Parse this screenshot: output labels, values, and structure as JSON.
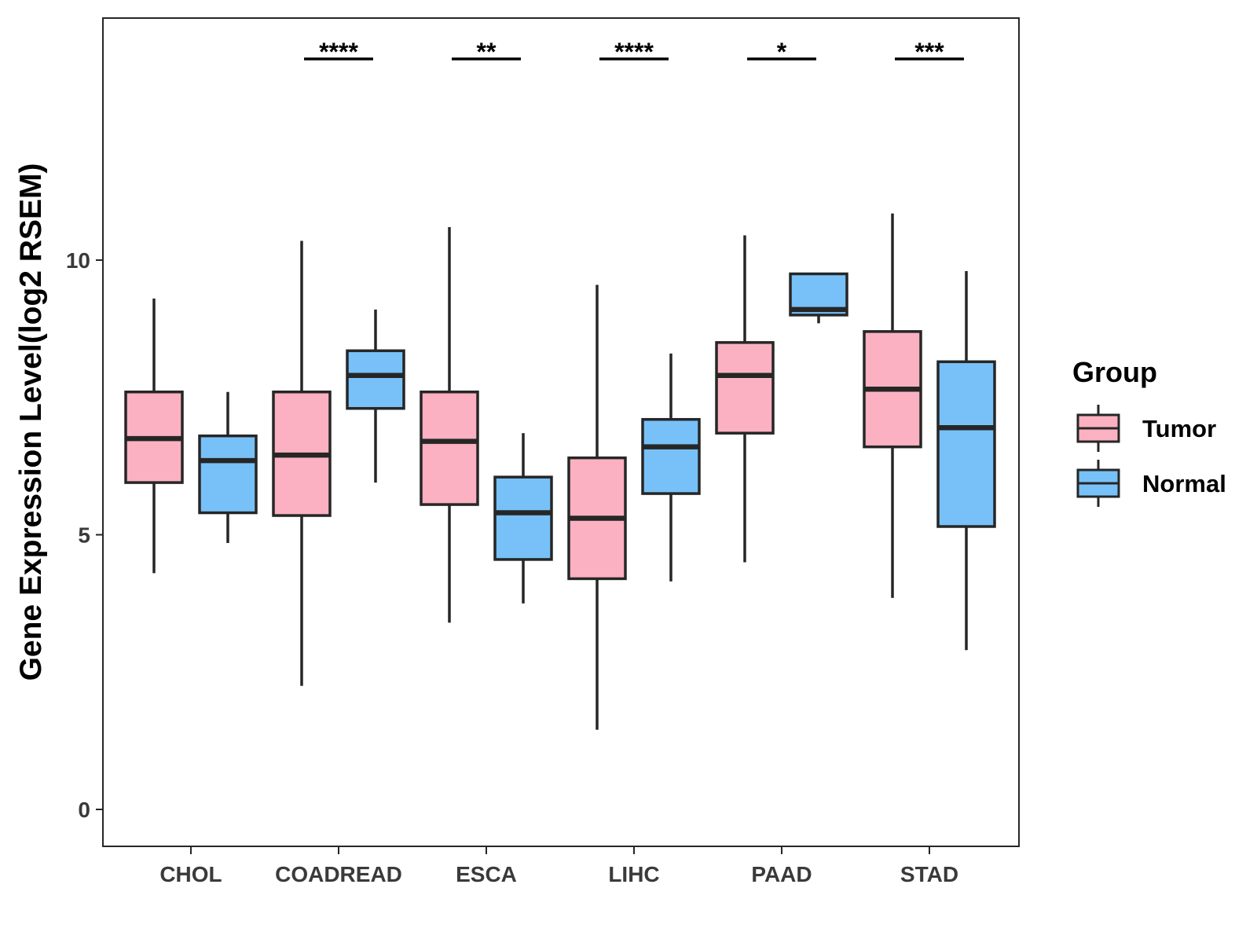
{
  "chart_data": {
    "type": "box",
    "ylabel": "Gene Expression Level(log2 RSEM)",
    "xlabel": "",
    "ylim": [
      -0.65,
      14.4
    ],
    "yticks": [
      0,
      5,
      10
    ],
    "grid": false,
    "legend": {
      "title": "Group",
      "position": "right",
      "entries": [
        "Tumor",
        "Normal"
      ]
    },
    "colors": {
      "Tumor": "#FBB1C2",
      "Normal": "#77C1F8",
      "stroke": "#262626"
    },
    "categories": [
      "CHOL",
      "COADREAD",
      "ESCA",
      "LIHC",
      "PAAD",
      "STAD"
    ],
    "series": [
      {
        "name": "Tumor",
        "boxes": [
          {
            "min": 4.3,
            "q1": 5.95,
            "median": 6.75,
            "q3": 7.6,
            "max": 9.3
          },
          {
            "min": 2.25,
            "q1": 5.35,
            "median": 6.45,
            "q3": 7.6,
            "max": 10.35
          },
          {
            "min": 3.4,
            "q1": 5.55,
            "median": 6.7,
            "q3": 7.6,
            "max": 10.6
          },
          {
            "min": 1.45,
            "q1": 4.2,
            "median": 5.3,
            "q3": 6.4,
            "max": 9.55
          },
          {
            "min": 4.5,
            "q1": 6.85,
            "median": 7.9,
            "q3": 8.5,
            "max": 10.45
          },
          {
            "min": 3.85,
            "q1": 6.6,
            "median": 7.65,
            "q3": 8.7,
            "max": 10.85
          }
        ]
      },
      {
        "name": "Normal",
        "boxes": [
          {
            "min": 4.85,
            "q1": 5.4,
            "median": 6.35,
            "q3": 6.8,
            "max": 7.6
          },
          {
            "min": 5.95,
            "q1": 7.3,
            "median": 7.9,
            "q3": 8.35,
            "max": 9.1
          },
          {
            "min": 3.75,
            "q1": 4.55,
            "median": 5.4,
            "q3": 6.05,
            "max": 6.85
          },
          {
            "min": 4.15,
            "q1": 5.75,
            "median": 6.6,
            "q3": 7.1,
            "max": 8.3
          },
          {
            "min": 8.85,
            "q1": 9.0,
            "median": 9.1,
            "q3": 9.75,
            "max": 9.75
          },
          {
            "min": 2.9,
            "q1": 5.15,
            "median": 6.95,
            "q3": 8.15,
            "max": 9.8
          }
        ]
      }
    ],
    "annotations": [
      "****",
      "**",
      "****",
      "*",
      "***"
    ],
    "annotation_categories": [
      "COADREAD",
      "ESCA",
      "LIHC",
      "PAAD",
      "STAD"
    ]
  }
}
